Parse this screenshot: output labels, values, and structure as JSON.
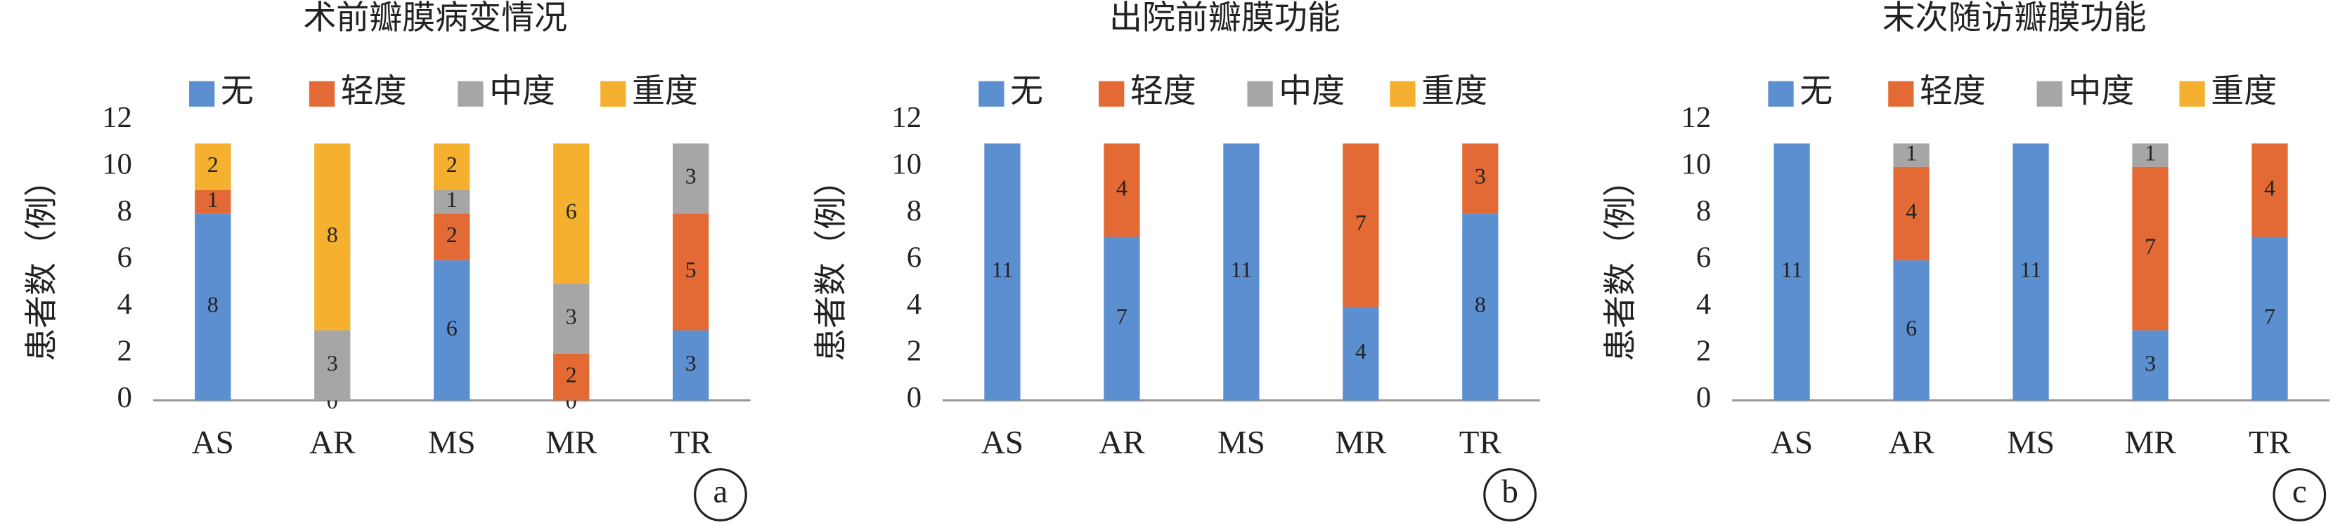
{
  "chart_data": [
    {
      "type": "bar",
      "stacked": true,
      "title": "术前瓣膜病变情况",
      "panel": "a",
      "y_label": "患者数（例）",
      "categories": [
        "AS",
        "AR",
        "MS",
        "MR",
        "TR"
      ],
      "series": [
        {
          "name": "无",
          "color": "#5b8fd0",
          "values": [
            8,
            0,
            6,
            0,
            3
          ]
        },
        {
          "name": "轻度",
          "color": "#e46a35",
          "values": [
            1,
            null,
            2,
            2,
            5
          ]
        },
        {
          "name": "中度",
          "color": "#a6a6a6",
          "values": [
            null,
            3,
            1,
            3,
            3
          ]
        },
        {
          "name": "重度",
          "color": "#f4b02e",
          "values": [
            2,
            8,
            2,
            6,
            null
          ]
        }
      ],
      "ylim": [
        0,
        12
      ],
      "yticks": [
        0,
        2,
        4,
        6,
        8,
        10,
        12
      ],
      "grid": false,
      "legend": "top"
    },
    {
      "type": "bar",
      "stacked": true,
      "title": "出院前瓣膜功能",
      "panel": "b",
      "y_label": "患者数（例）",
      "categories": [
        "AS",
        "AR",
        "MS",
        "MR",
        "TR"
      ],
      "series": [
        {
          "name": "无",
          "color": "#5b8fd0",
          "values": [
            11,
            7,
            11,
            4,
            8
          ]
        },
        {
          "name": "轻度",
          "color": "#e46a35",
          "values": [
            null,
            4,
            null,
            7,
            3
          ]
        },
        {
          "name": "中度",
          "color": "#a6a6a6",
          "values": [
            null,
            null,
            null,
            null,
            null
          ]
        },
        {
          "name": "重度",
          "color": "#f4b02e",
          "values": [
            null,
            null,
            null,
            null,
            null
          ]
        }
      ],
      "ylim": [
        0,
        12
      ],
      "yticks": [
        0,
        2,
        4,
        6,
        8,
        10,
        12
      ],
      "grid": false,
      "legend": "top"
    },
    {
      "type": "bar",
      "stacked": true,
      "title": "末次随访瓣膜功能",
      "panel": "c",
      "y_label": "患者数（例）",
      "categories": [
        "AS",
        "AR",
        "MS",
        "MR",
        "TR"
      ],
      "series": [
        {
          "name": "无",
          "color": "#5b8fd0",
          "values": [
            11,
            6,
            11,
            3,
            7
          ]
        },
        {
          "name": "轻度",
          "color": "#e46a35",
          "values": [
            null,
            4,
            null,
            7,
            4
          ]
        },
        {
          "name": "中度",
          "color": "#a6a6a6",
          "values": [
            null,
            1,
            null,
            1,
            null
          ]
        },
        {
          "name": "重度",
          "color": "#f4b02e",
          "values": [
            null,
            null,
            null,
            null,
            null
          ]
        }
      ],
      "ylim": [
        0,
        12
      ],
      "yticks": [
        0,
        2,
        4,
        6,
        8,
        10,
        12
      ],
      "grid": false,
      "legend": "top"
    }
  ]
}
